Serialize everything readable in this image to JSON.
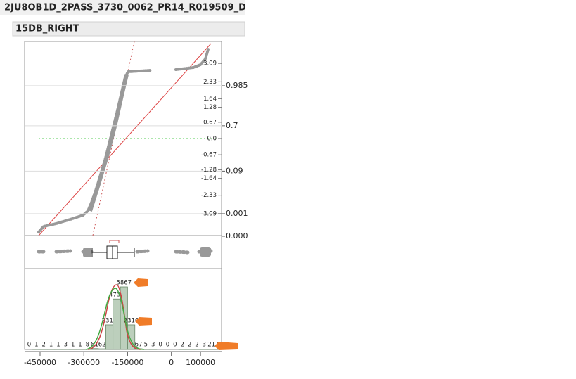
{
  "header": {
    "title": "2JU8OB1D_2PASS_3730_0062_PR14_R019509_D",
    "subtitle": "15DB_RIGHT"
  },
  "quantile_plot": {
    "normal_quantile_ticks": [
      3.09,
      2.33,
      1.64,
      1.28,
      0.67,
      {
        "value": 0,
        "label": "0.0"
      },
      -0.67,
      -1.28,
      -1.64,
      -2.33,
      -3.09
    ],
    "probability_ticks": [
      0.985,
      0.7,
      0.09,
      0.001,
      {
        "value": 0,
        "label": "0.000"
      }
    ]
  },
  "histogram": {
    "bins": [
      -500000,
      -475000,
      -450000,
      -425000,
      -400000,
      -375000,
      -350000,
      -325000,
      -300000,
      -275000,
      -250000,
      -225000,
      -200000,
      -175000,
      -150000,
      -125000,
      -100000,
      -75000,
      -50000,
      -25000,
      0,
      25000,
      50000,
      75000,
      100000,
      125000,
      150000,
      175000
    ],
    "counts": [
      0,
      1,
      2,
      1,
      1,
      3,
      1,
      1,
      8,
      81,
      62,
      2310,
      4733,
      5867,
      2310,
      67,
      5,
      3,
      0,
      0,
      0,
      2,
      2,
      2,
      3,
      21,
      8
    ],
    "xlim": [
      -503000,
      172000
    ],
    "xticks": [
      -450000,
      -300000,
      -150000,
      0,
      100000
    ]
  }
}
